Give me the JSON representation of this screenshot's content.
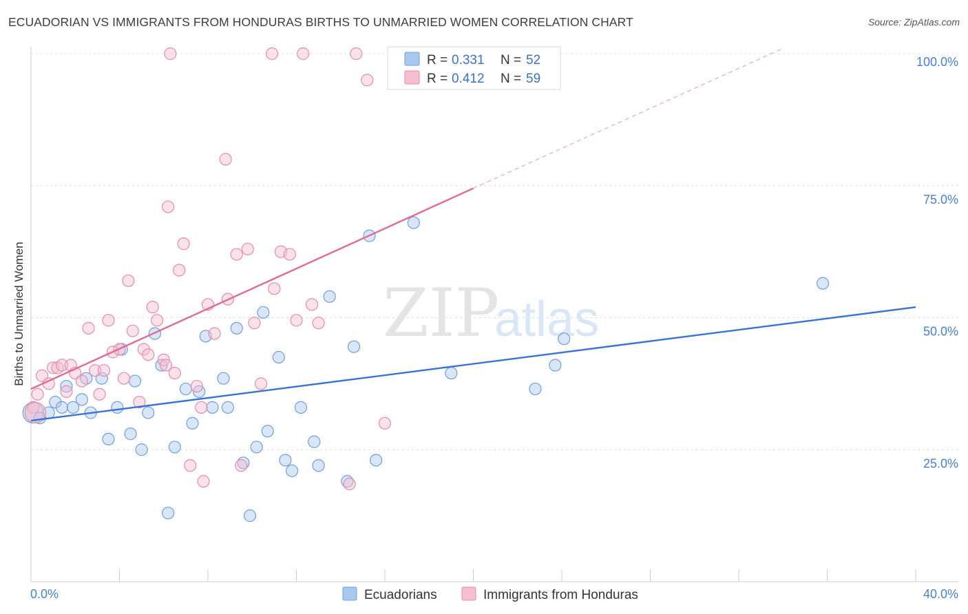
{
  "chart_data": {
    "type": "scatter",
    "title": "ECUADORIAN VS IMMIGRANTS FROM HONDURAS BIRTHS TO UNMARRIED WOMEN CORRELATION CHART",
    "source": "Source: ZipAtlas.com",
    "ylabel": "Births to Unmarried Women",
    "xlim": [
      0,
      40
    ],
    "ylim": [
      0,
      100
    ],
    "x_tick_labels": [
      "0.0%",
      "40.0%"
    ],
    "y_ticks": [
      {
        "value": 25,
        "label": "25.0%"
      },
      {
        "value": 50,
        "label": "50.0%"
      },
      {
        "value": 75,
        "label": "75.0%"
      },
      {
        "value": 100,
        "label": "100.0%"
      }
    ],
    "watermark": {
      "part1": "ZIP",
      "part2": "atlas"
    },
    "legend": [
      {
        "r_label": "R =",
        "r_value": "0.331",
        "n_label": "N =",
        "n_value": "52"
      },
      {
        "r_label": "R =",
        "r_value": "0.412",
        "n_label": "N =",
        "n_value": "59"
      }
    ],
    "series": [
      {
        "name": "Ecuadorians",
        "color": "#a9c8ee",
        "stroke": "#6f9fdc",
        "line_color": "#3574d4",
        "trend": {
          "x0": 0,
          "y0": 30.5,
          "x1": 40,
          "y1": 52.0
        },
        "points": [
          [
            0.1,
            32.0
          ],
          [
            0.4,
            31.0
          ],
          [
            0.8,
            32.0
          ],
          [
            1.1,
            34.0
          ],
          [
            1.4,
            33.0
          ],
          [
            1.6,
            37.0
          ],
          [
            1.9,
            33.0
          ],
          [
            2.3,
            34.5
          ],
          [
            2.5,
            38.5
          ],
          [
            2.7,
            32.0
          ],
          [
            3.2,
            38.5
          ],
          [
            3.5,
            27.0
          ],
          [
            3.9,
            33.0
          ],
          [
            4.1,
            44.0
          ],
          [
            4.5,
            28.0
          ],
          [
            4.7,
            38.0
          ],
          [
            5.0,
            25.0
          ],
          [
            5.3,
            32.0
          ],
          [
            5.6,
            47.0
          ],
          [
            5.9,
            41.0
          ],
          [
            6.2,
            13.0
          ],
          [
            6.5,
            25.5
          ],
          [
            7.0,
            36.5
          ],
          [
            7.3,
            30.0
          ],
          [
            7.6,
            36.0
          ],
          [
            7.9,
            46.5
          ],
          [
            8.2,
            33.0
          ],
          [
            8.7,
            38.5
          ],
          [
            8.9,
            33.0
          ],
          [
            9.3,
            48.0
          ],
          [
            9.6,
            22.5
          ],
          [
            9.9,
            12.5
          ],
          [
            10.2,
            25.5
          ],
          [
            10.5,
            51.0
          ],
          [
            10.7,
            28.5
          ],
          [
            11.2,
            42.5
          ],
          [
            11.5,
            23.0
          ],
          [
            11.8,
            21.0
          ],
          [
            12.2,
            33.0
          ],
          [
            12.8,
            26.5
          ],
          [
            13.0,
            22.0
          ],
          [
            13.5,
            54.0
          ],
          [
            14.3,
            19.0
          ],
          [
            14.6,
            44.5
          ],
          [
            15.3,
            65.5
          ],
          [
            15.6,
            23.0
          ],
          [
            17.3,
            68.0
          ],
          [
            19.0,
            39.5
          ],
          [
            22.8,
            36.5
          ],
          [
            23.7,
            41.0
          ],
          [
            24.1,
            46.0
          ],
          [
            35.8,
            56.5
          ]
        ]
      },
      {
        "name": "Immigrants from Honduras",
        "color": "#f5bfd0",
        "stroke": "#e88aaa",
        "line_color": "#e06a92",
        "trend": {
          "x0": 0,
          "y0": 36.5,
          "x1": 20,
          "y1": 74.5
        },
        "trend_extension": {
          "x0": 20,
          "y0": 74.5,
          "x1": 34,
          "y1": 101
        },
        "points": [
          [
            0.1,
            33.0
          ],
          [
            0.3,
            35.5
          ],
          [
            0.5,
            39.0
          ],
          [
            0.8,
            37.5
          ],
          [
            1.0,
            40.5
          ],
          [
            1.2,
            40.5
          ],
          [
            1.4,
            41.0
          ],
          [
            1.6,
            36.0
          ],
          [
            1.8,
            41.0
          ],
          [
            2.0,
            39.5
          ],
          [
            2.3,
            38.0
          ],
          [
            2.6,
            48.0
          ],
          [
            2.9,
            40.0
          ],
          [
            3.1,
            35.5
          ],
          [
            3.3,
            40.0
          ],
          [
            3.5,
            49.5
          ],
          [
            3.7,
            43.5
          ],
          [
            4.0,
            44.0
          ],
          [
            4.2,
            38.5
          ],
          [
            4.4,
            57.0
          ],
          [
            4.6,
            47.5
          ],
          [
            4.9,
            34.0
          ],
          [
            5.1,
            44.0
          ],
          [
            5.3,
            43.0
          ],
          [
            5.5,
            52.0
          ],
          [
            5.7,
            49.5
          ],
          [
            6.0,
            42.0
          ],
          [
            6.1,
            41.0
          ],
          [
            6.2,
            71.0
          ],
          [
            6.3,
            100.0
          ],
          [
            6.5,
            39.5
          ],
          [
            6.7,
            59.0
          ],
          [
            6.9,
            64.0
          ],
          [
            7.2,
            22.0
          ],
          [
            7.5,
            37.0
          ],
          [
            7.7,
            33.0
          ],
          [
            7.8,
            19.0
          ],
          [
            8.0,
            52.5
          ],
          [
            8.3,
            47.0
          ],
          [
            8.8,
            80.0
          ],
          [
            8.9,
            53.5
          ],
          [
            9.3,
            62.0
          ],
          [
            9.5,
            22.0
          ],
          [
            9.8,
            63.0
          ],
          [
            10.1,
            49.0
          ],
          [
            10.4,
            37.5
          ],
          [
            10.9,
            100.0
          ],
          [
            11.0,
            55.5
          ],
          [
            11.3,
            62.5
          ],
          [
            11.7,
            62.0
          ],
          [
            12.0,
            49.5
          ],
          [
            12.3,
            100.0
          ],
          [
            12.7,
            52.5
          ],
          [
            13.0,
            49.0
          ],
          [
            14.4,
            18.5
          ],
          [
            14.7,
            100.0
          ],
          [
            15.2,
            95.0
          ],
          [
            16.0,
            30.0
          ],
          [
            0.2,
            32.0
          ]
        ]
      }
    ]
  }
}
